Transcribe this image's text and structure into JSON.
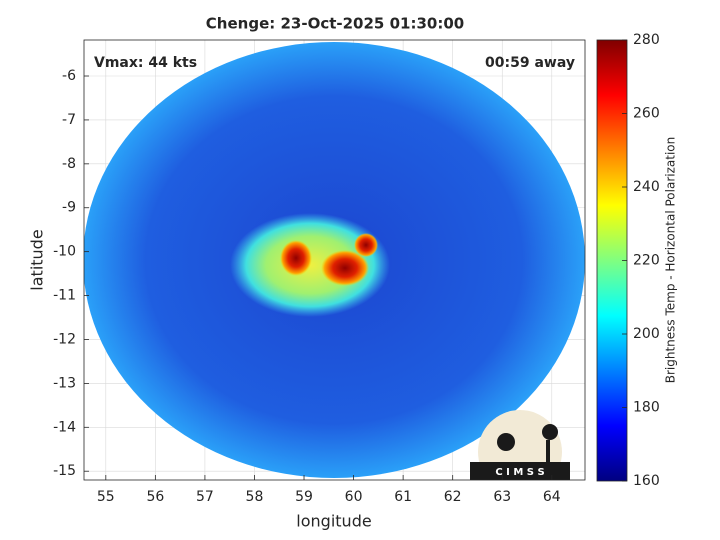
{
  "chart_data": {
    "type": "heatmap",
    "title": "Chenge: 23-Oct-2025 01:30:00",
    "xlabel": "longitude",
    "ylabel": "latitude",
    "xlim": [
      54.56,
      64.67
    ],
    "ylim": [
      -15.2,
      -5.18
    ],
    "xticks": [
      55,
      56,
      57,
      58,
      59,
      60,
      61,
      62,
      63,
      64
    ],
    "yticks": [
      -15,
      -14,
      -13,
      -12,
      -11,
      -10,
      -9,
      -8,
      -7,
      -6
    ],
    "grid": true,
    "annotations": [
      "Vmax: 44 kts",
      "00:59 away"
    ],
    "colorbar": {
      "label": "Brightness Temp - Horizontal Polarization",
      "colormap": "jet",
      "lim": [
        160,
        280
      ],
      "ticks": [
        160,
        180,
        200,
        220,
        240,
        260,
        280
      ]
    },
    "logo": "C I M S S"
  }
}
